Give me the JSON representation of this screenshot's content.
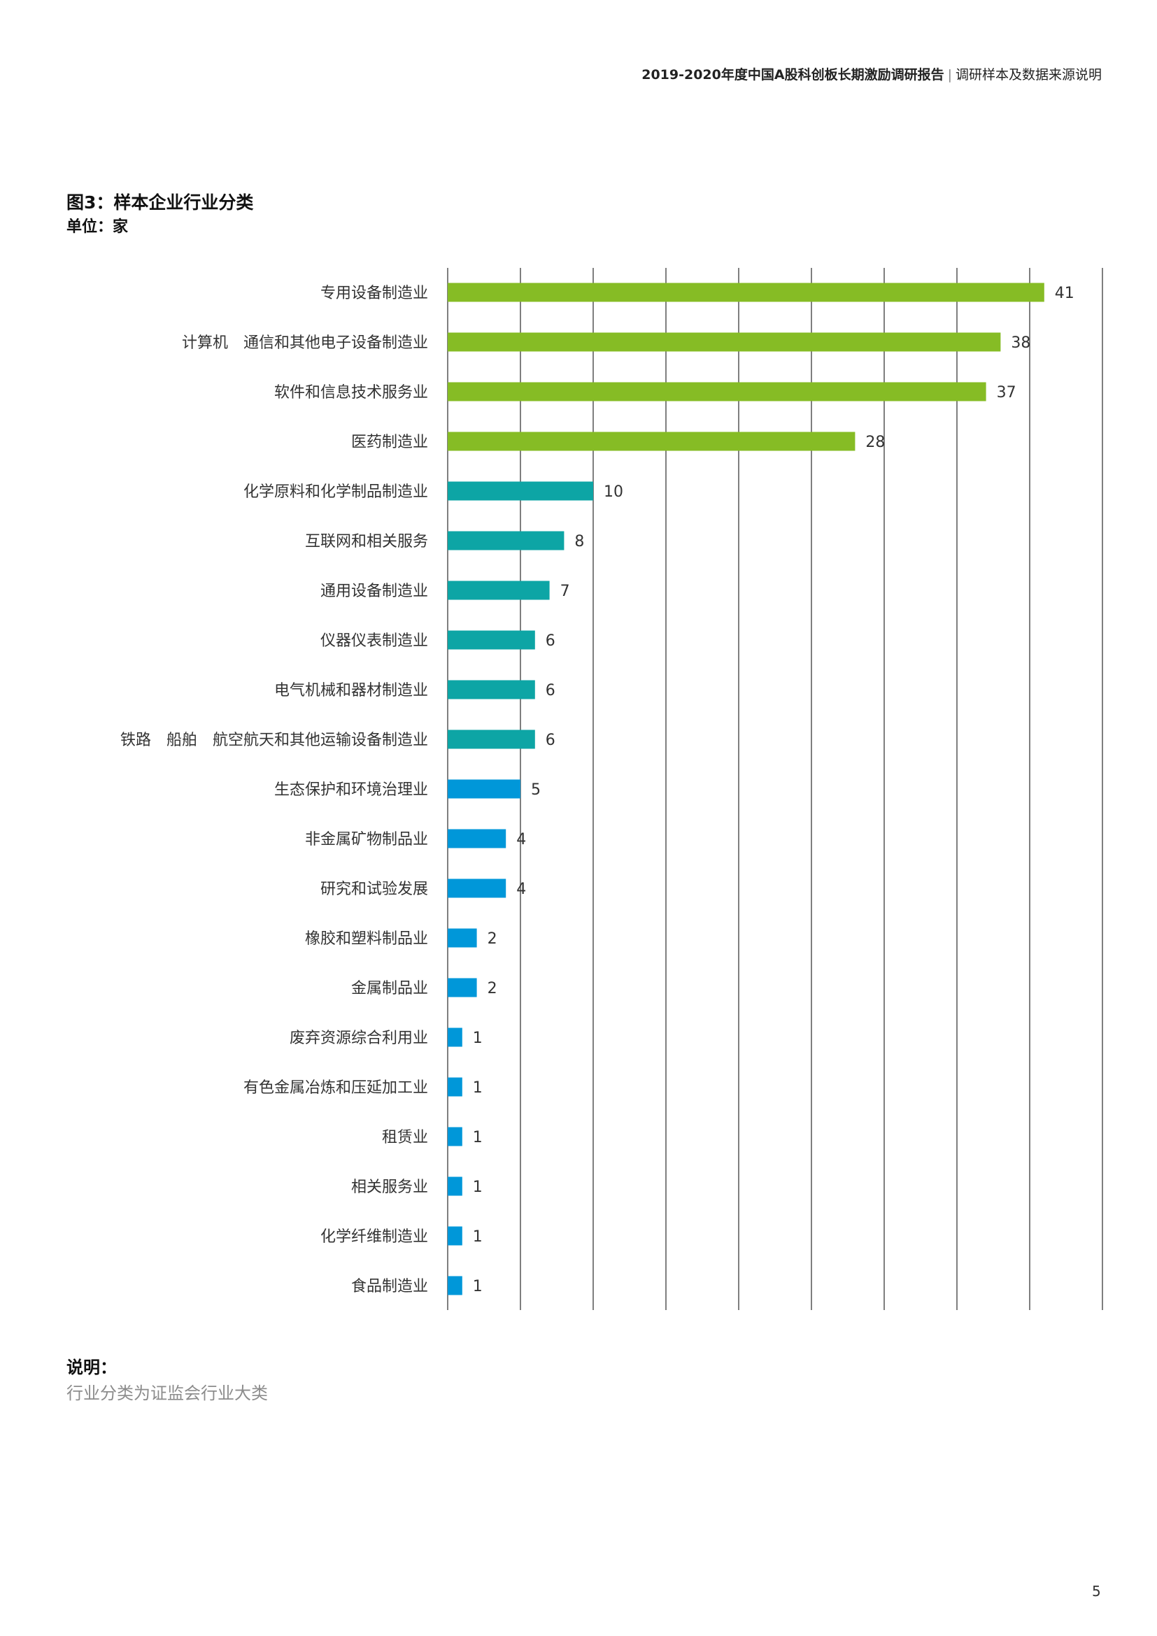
{
  "header": {
    "report_title": "2019-2020年度中国A股科创板长期激励调研报告",
    "separator": "|",
    "section": "调研样本及数据来源说明"
  },
  "figure": {
    "title": "图3：样本企业行业分类",
    "unit": "单位：家"
  },
  "chart_data": {
    "type": "bar",
    "orientation": "horizontal",
    "categories": [
      "专用设备制造业",
      "计算机　通信和其他电子设备制造业",
      "软件和信息技术服务业",
      "医药制造业",
      "化学原料和化学制品制造业",
      "互联网和相关服务",
      "通用设备制造业",
      "仪器仪表制造业",
      "电气机械和器材制造业",
      "铁路　船舶　航空航天和其他运输设备制造业",
      "生态保护和环境治理业",
      "非金属矿物制品业",
      "研究和试验发展",
      "橡胶和塑料制品业",
      "金属制品业",
      "废弃资源综合利用业",
      "有色金属冶炼和压延加工业",
      "租赁业",
      "相关服务业",
      "化学纤维制造业",
      "食品制造业"
    ],
    "values": [
      41,
      38,
      37,
      28,
      10,
      8,
      7,
      6,
      6,
      6,
      5,
      4,
      4,
      2,
      2,
      1,
      1,
      1,
      1,
      1,
      1
    ],
    "colors": [
      "#86bc25",
      "#86bc25",
      "#86bc25",
      "#86bc25",
      "#0da5a5",
      "#0da5a5",
      "#0da5a5",
      "#0da5a5",
      "#0da5a5",
      "#0da5a5",
      "#0097d9",
      "#0097d9",
      "#0097d9",
      "#0097d9",
      "#0097d9",
      "#0097d9",
      "#0097d9",
      "#0097d9",
      "#0097d9",
      "#0097d9",
      "#0097d9"
    ],
    "xlim": [
      0,
      45
    ],
    "grid_step": 5,
    "grid": true,
    "title": "图3：样本企业行业分类",
    "xlabel": "",
    "ylabel": ""
  },
  "note": {
    "title": "说明：",
    "text": "行业分类为证监会行业大类"
  },
  "page_number": "5"
}
